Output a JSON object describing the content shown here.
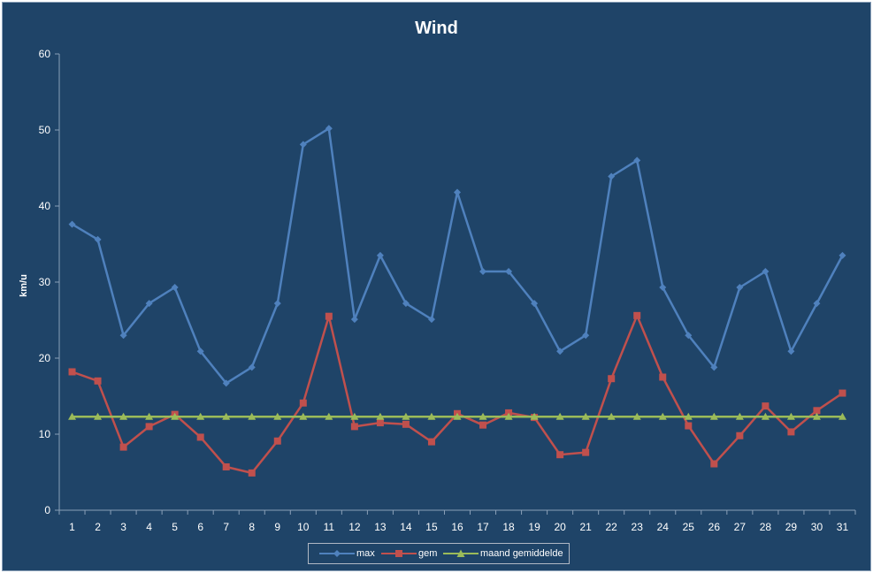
{
  "chart_data": {
    "type": "line",
    "title": "Wind",
    "ylabel": "km/u",
    "xlabel": "",
    "ylim": [
      0,
      60
    ],
    "yticks": [
      0,
      10,
      20,
      30,
      40,
      50,
      60
    ],
    "categories": [
      "1",
      "2",
      "3",
      "4",
      "5",
      "6",
      "7",
      "8",
      "9",
      "10",
      "11",
      "12",
      "13",
      "14",
      "15",
      "16",
      "17",
      "18",
      "19",
      "20",
      "21",
      "22",
      "23",
      "24",
      "25",
      "26",
      "27",
      "28",
      "29",
      "30",
      "31"
    ],
    "series": [
      {
        "name": "max",
        "color": "#4f81bd",
        "marker": "diamond",
        "values": [
          37.6,
          35.6,
          23.0,
          27.2,
          29.3,
          20.9,
          16.7,
          18.8,
          27.2,
          48.1,
          50.2,
          25.1,
          33.5,
          27.2,
          25.1,
          41.8,
          31.4,
          31.4,
          27.2,
          20.9,
          23.0,
          43.9,
          46.0,
          29.3,
          23.0,
          18.8,
          29.3,
          31.4,
          20.9,
          27.2,
          33.5
        ]
      },
      {
        "name": "gem",
        "color": "#c0504d",
        "marker": "square",
        "values": [
          18.2,
          17.0,
          8.3,
          11.0,
          12.6,
          9.6,
          5.7,
          4.9,
          9.1,
          14.1,
          25.5,
          11.0,
          11.5,
          11.3,
          9.0,
          12.7,
          11.2,
          12.8,
          12.2,
          7.3,
          7.6,
          17.3,
          25.6,
          17.5,
          11.1,
          6.1,
          9.8,
          13.7,
          10.3,
          13.1,
          15.4
        ]
      },
      {
        "name": "maand gemiddelde",
        "color": "#9bbb59",
        "marker": "triangle",
        "values": [
          12.3,
          12.3,
          12.3,
          12.3,
          12.3,
          12.3,
          12.3,
          12.3,
          12.3,
          12.3,
          12.3,
          12.3,
          12.3,
          12.3,
          12.3,
          12.3,
          12.3,
          12.3,
          12.3,
          12.3,
          12.3,
          12.3,
          12.3,
          12.3,
          12.3,
          12.3,
          12.3,
          12.3,
          12.3,
          12.3,
          12.3
        ]
      }
    ],
    "grid": false,
    "legend_position": "bottom",
    "background_color": "#1f4468"
  }
}
